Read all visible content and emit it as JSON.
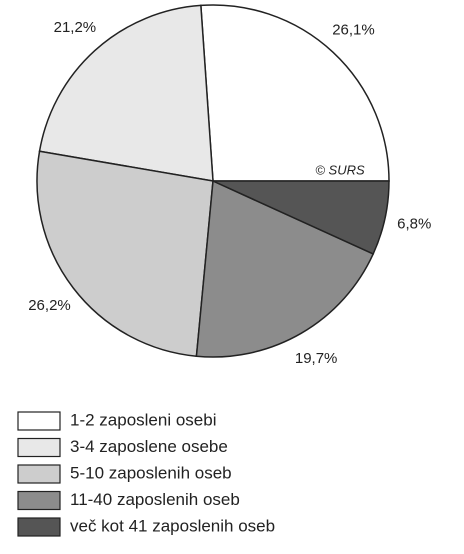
{
  "chart_data": {
    "type": "pie",
    "categories": [
      "1-2 zaposleni osebi",
      "3-4 zaposlene osebe",
      "5-10 zaposlenih oseb",
      "11-40 zaposlenih oseb",
      "več kot 41 zaposlenih oseb"
    ],
    "values": [
      26.1,
      21.2,
      26.2,
      19.7,
      6.8
    ],
    "value_labels": [
      "26,1%",
      "21,2%",
      "26,2%",
      "19,7%",
      "6,8%"
    ],
    "colors": [
      "#ffffff",
      "#e8e8e8",
      "#cdcdcd",
      "#8c8c8c",
      "#555555"
    ],
    "annotation": "© SURS"
  }
}
